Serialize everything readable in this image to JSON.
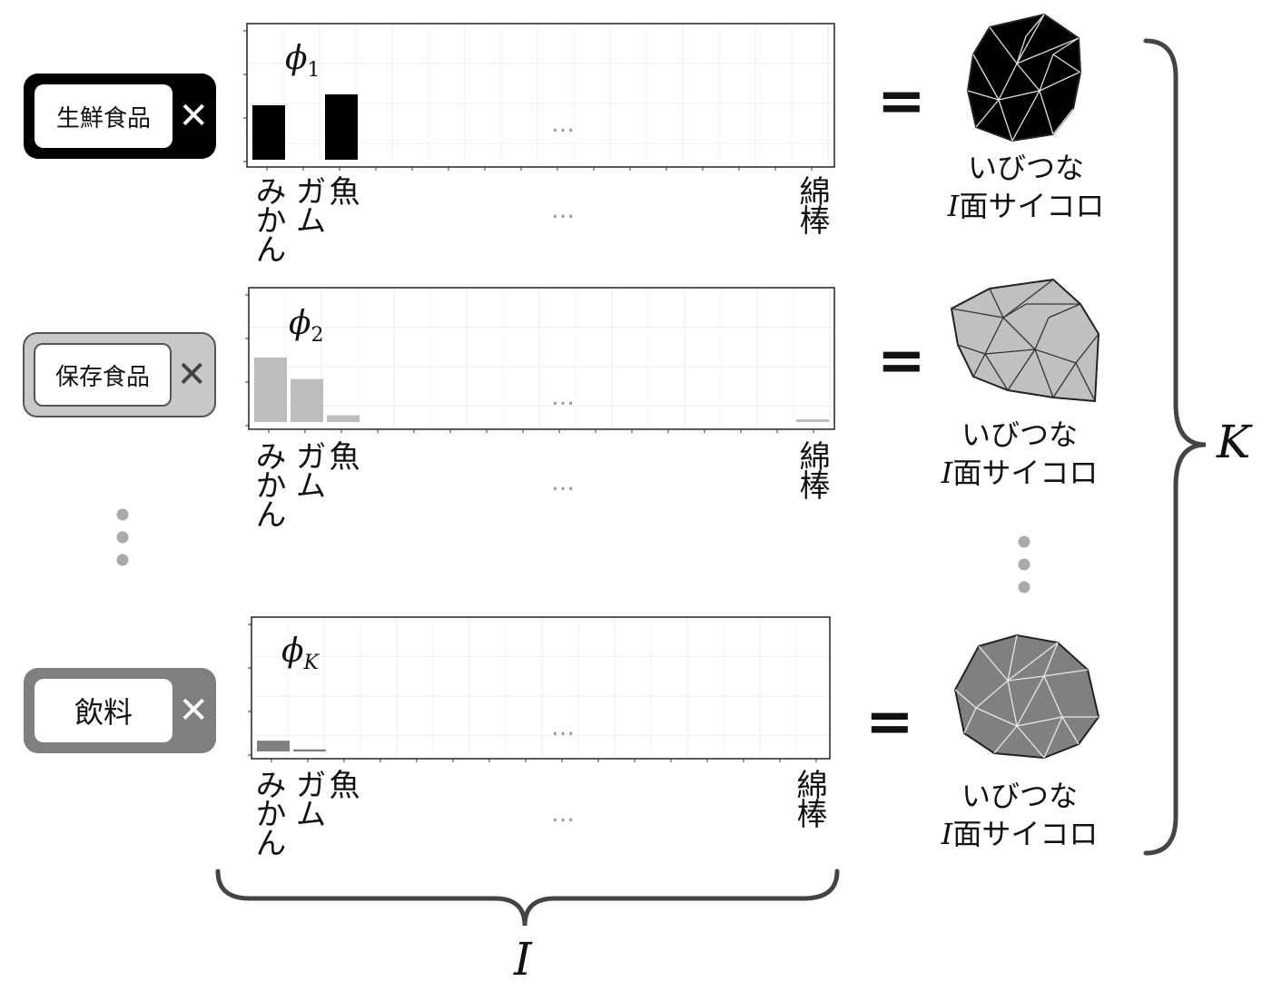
{
  "categories": [
    {
      "label": "生鮮食品",
      "close": "✕",
      "color": "#000000",
      "phi": "ϕ",
      "sub": "1"
    },
    {
      "label": "保存食品",
      "close": "✕",
      "color": "#bdbdbd",
      "phi": "ϕ",
      "sub": "2"
    },
    {
      "label": "飲料",
      "close": "✕",
      "color": "#808080",
      "phi": "ϕ",
      "sub": "K"
    }
  ],
  "items": {
    "first": "みかん",
    "second": "ガム",
    "third": "魚",
    "last": "綿棒",
    "ellipsis": "…"
  },
  "dice": {
    "label_line1": "いびつな",
    "label_var": "I",
    "label_rest": "面サイコロ",
    "equals": "="
  },
  "brace": {
    "bottom_label": "I",
    "right_label": "K"
  },
  "chart_data": [
    {
      "type": "bar",
      "categories": [
        "みかん",
        "ガム",
        "魚",
        "綿棒"
      ],
      "values": [
        0.4,
        0,
        0.48,
        0
      ],
      "color": "#000000"
    },
    {
      "type": "bar",
      "categories": [
        "みかん",
        "ガム",
        "魚",
        "綿棒"
      ],
      "values": [
        0.48,
        0.32,
        0.05,
        0.02
      ],
      "color": "#bdbdbd"
    },
    {
      "type": "bar",
      "categories": [
        "みかん",
        "ガム",
        "魚",
        "綿棒"
      ],
      "values": [
        0.08,
        0.015,
        0,
        0
      ],
      "color": "#808080"
    }
  ]
}
